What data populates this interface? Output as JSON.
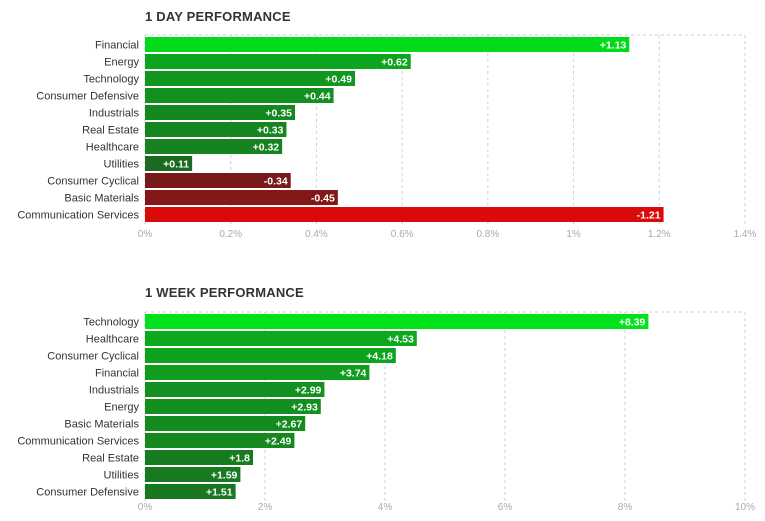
{
  "colors": {
    "positive_strong": "#00e31a",
    "negative_strong": "#db0b0b",
    "positive_dark": "#1f5a22",
    "negative_dark": "#5c1e1e",
    "grid": "#cfcfcf",
    "text": "#333333",
    "tick_text": "#aaaaaa"
  },
  "chart_data": [
    {
      "type": "bar",
      "orientation": "horizontal",
      "title": "1 DAY PERFORMANCE",
      "categories": [
        "Financial",
        "Energy",
        "Technology",
        "Consumer Defensive",
        "Industrials",
        "Real Estate",
        "Healthcare",
        "Utilities",
        "Consumer Cyclical",
        "Basic Materials",
        "Communication Services"
      ],
      "values": [
        1.13,
        0.62,
        0.49,
        0.44,
        0.35,
        0.33,
        0.32,
        0.11,
        -0.34,
        -0.45,
        -1.21
      ],
      "value_labels": [
        "+1.13",
        "+0.62",
        "+0.49",
        "+0.44",
        "+0.35",
        "+0.33",
        "+0.32",
        "+0.11",
        "-0.34",
        "-0.45",
        "-1.21"
      ],
      "xlim": [
        0,
        1.4
      ],
      "xticks": [
        0,
        0.2,
        0.4,
        0.6,
        0.8,
        1.0,
        1.2,
        1.4
      ],
      "xtick_labels": [
        "0%",
        "0.2%",
        "0.4%",
        "0.6%",
        "0.8%",
        "1%",
        "1.2%",
        "1.4%"
      ],
      "bar_length": "absolute value",
      "grid": true
    },
    {
      "type": "bar",
      "orientation": "horizontal",
      "title": "1 WEEK PERFORMANCE",
      "categories": [
        "Technology",
        "Healthcare",
        "Consumer Cyclical",
        "Financial",
        "Industrials",
        "Energy",
        "Basic Materials",
        "Communication Services",
        "Real Estate",
        "Utilities",
        "Consumer Defensive"
      ],
      "values": [
        8.39,
        4.53,
        4.18,
        3.74,
        2.99,
        2.93,
        2.67,
        2.49,
        1.8,
        1.59,
        1.51
      ],
      "value_labels": [
        "+8.39",
        "+4.53",
        "+4.18",
        "+3.74",
        "+2.99",
        "+2.93",
        "+2.67",
        "+2.49",
        "+1.8",
        "+1.59",
        "+1.51"
      ],
      "xlim": [
        0,
        10
      ],
      "xticks": [
        0,
        2,
        4,
        6,
        8,
        10
      ],
      "xtick_labels": [
        "0%",
        "2%",
        "4%",
        "6%",
        "8%",
        "10%"
      ],
      "bar_length": "absolute value",
      "grid": true
    }
  ]
}
